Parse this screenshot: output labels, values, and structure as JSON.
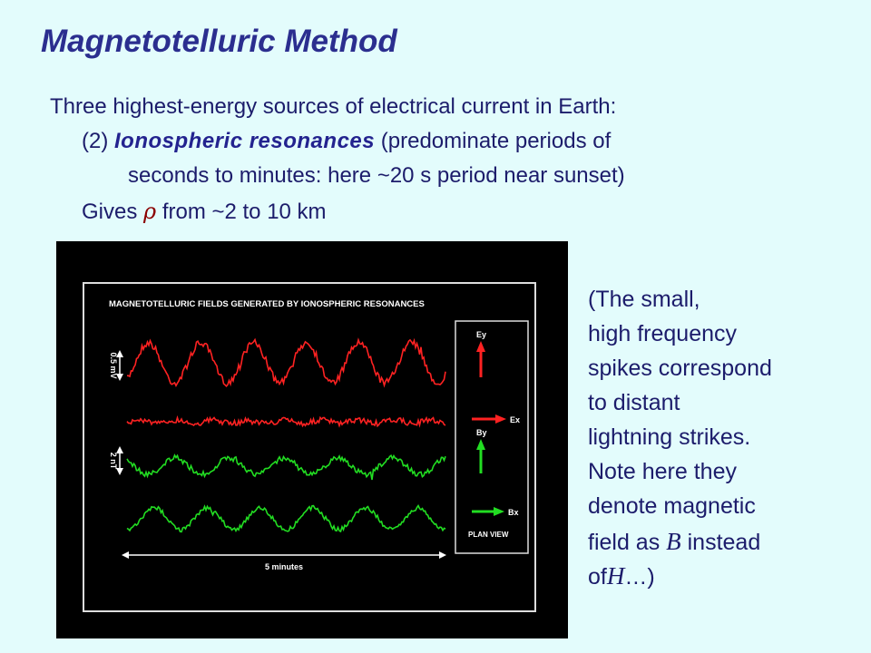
{
  "title": "Magnetotelluric Method",
  "body": {
    "intro": "Three highest-energy sources of electrical current in Earth:",
    "item_number": "(2)",
    "item_term": "Ionospheric resonances",
    "item_rest": "(predominate periods of",
    "item_cont": "seconds to minutes: here ~20 s period near sunset)",
    "gives_pre": "Gives",
    "gives_symbol": "ρ",
    "gives_post": "from ~2 to 10 km"
  },
  "figure": {
    "title": "MAGNETOTELLURIC FIELDS GENERATED BY IONOSPHERIC RESONANCES",
    "scale_e": "0.5 mV",
    "scale_b": "2 nT",
    "time_scale": "5 minutes",
    "labels": [
      "Ey",
      "Ex",
      "By",
      "Bx"
    ],
    "plan_view": "PLAN VIEW"
  },
  "note": {
    "lines": [
      "(The small,",
      "high frequency",
      "spikes correspond",
      "to distant",
      "lightning strikes.",
      "Note here they",
      "denote magnetic"
    ],
    "field_pre": "field as",
    "field_symbol": "B",
    "field_post": "instead",
    "of_pre": "of",
    "of_symbol": "H",
    "of_post": "…)"
  }
}
